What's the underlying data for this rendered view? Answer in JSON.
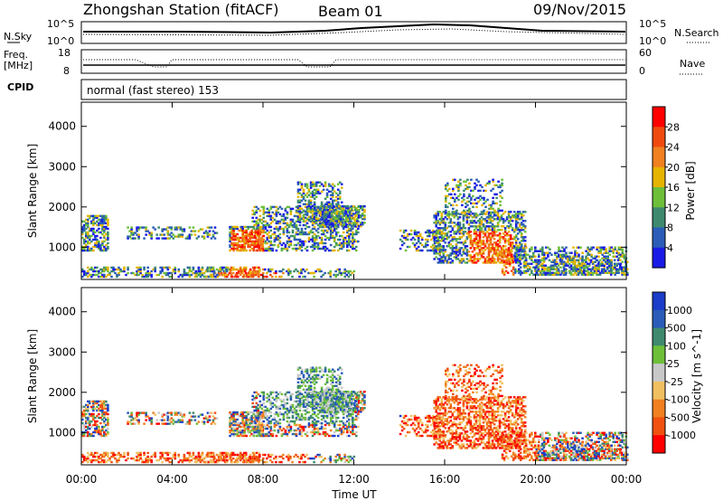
{
  "header": {
    "station": "Zhongshan Station (fitACF)",
    "beam": "Beam 01",
    "date": "09/Nov/2015"
  },
  "nsky_panel": {
    "left_label": "N.Sky",
    "left_ticks": [
      "10^5",
      "10^0"
    ],
    "right_ticks": [
      "10^5",
      "10^0"
    ],
    "right_label": "N.Search"
  },
  "freq_panel": {
    "left_label_1": "Freq.",
    "left_label_2": "[MHz]",
    "left_ticks": [
      "18",
      "8"
    ],
    "right_ticks": [
      "60",
      "0"
    ],
    "right_label": "Nave"
  },
  "cpid_panel": {
    "label": "CPID",
    "mode": "normal (fast stereo) 153"
  },
  "colors": {
    "power_scale": [
      "#1a1ae6",
      "#2a5cb8",
      "#3f8a6e",
      "#6dbf3a",
      "#e6b400",
      "#f08020",
      "#f04a10",
      "#ff0000"
    ],
    "velocity_scale": [
      "#ff0000",
      "#f05010",
      "#f08020",
      "#f0c060",
      "#c8c8c8",
      "#6dbf3a",
      "#3f8a6e",
      "#2a5cb8",
      "#1a3cc8"
    ]
  },
  "chart_data": [
    {
      "type": "heatmap",
      "title": "Power",
      "ylabel": "Slant Range [km]",
      "xlabel": "",
      "x_ticks": [
        "00:00",
        "04:00",
        "08:00",
        "12:00",
        "16:00",
        "20:00",
        "00:00"
      ],
      "xlim": [
        0,
        24
      ],
      "ylim": [
        200,
        4600
      ],
      "y_ticks": [
        "1000",
        "2000",
        "3000",
        "4000"
      ],
      "colorbar": {
        "label": "Power [dB]",
        "ticks": [
          "28",
          "24",
          "20",
          "16",
          "12",
          "8",
          "4"
        ],
        "range": [
          0,
          32
        ]
      },
      "data_gap_hours": [
        12.5,
        14.0
      ]
    },
    {
      "type": "heatmap",
      "title": "Velocity",
      "ylabel": "Slant Range [km]",
      "xlabel": "Time UT",
      "x_ticks": [
        "00:00",
        "04:00",
        "08:00",
        "12:00",
        "16:00",
        "20:00",
        "00:00"
      ],
      "xlim": [
        0,
        24
      ],
      "ylim": [
        200,
        4600
      ],
      "y_ticks": [
        "1000",
        "2000",
        "3000",
        "4000"
      ],
      "colorbar": {
        "label": "Velocity [m s^-1]",
        "ticks": [
          "1000",
          "500",
          "100",
          "25",
          "-25",
          "-100",
          "-500",
          "-1000"
        ]
      },
      "data_gap_hours": [
        12.5,
        14.0
      ]
    }
  ]
}
